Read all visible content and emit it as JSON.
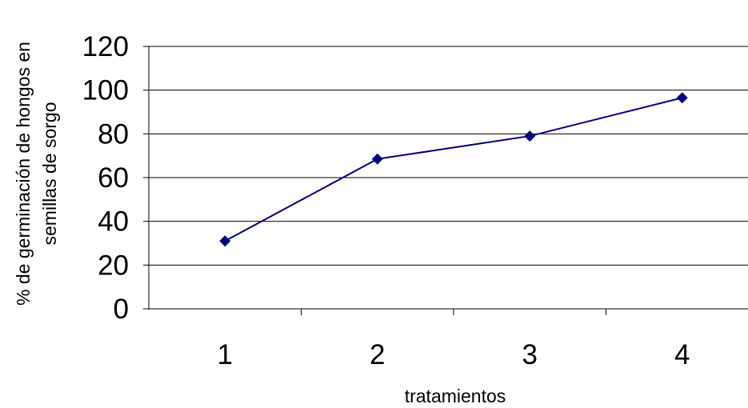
{
  "chart_data": {
    "type": "line",
    "title": "",
    "xlabel": "tratamientos",
    "ylabel_lines": [
      "% de germinación de hongos en",
      "semillas de sorgo"
    ],
    "categories": [
      "1",
      "2",
      "3",
      "4"
    ],
    "series": [
      {
        "values": [
          31,
          68.5,
          79,
          96.5
        ]
      }
    ],
    "yticks": [
      "0",
      "20",
      "40",
      "60",
      "80",
      "100",
      "120"
    ],
    "ylim": [
      0,
      120
    ],
    "grid": "horizontal",
    "legend": "none",
    "line_color": "#000080",
    "marker": "diamond"
  }
}
